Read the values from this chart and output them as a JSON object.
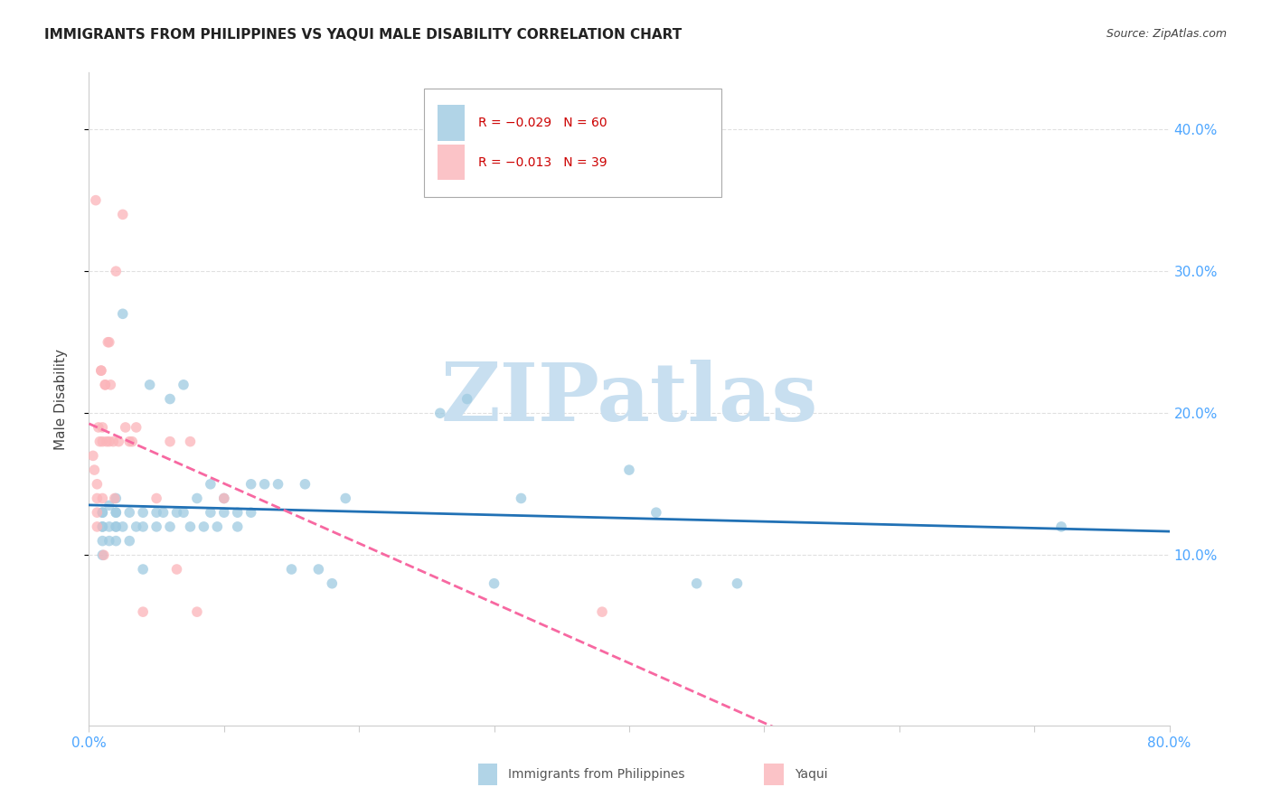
{
  "title": "IMMIGRANTS FROM PHILIPPINES VS YAQUI MALE DISABILITY CORRELATION CHART",
  "source": "Source: ZipAtlas.com",
  "ylabel": "Male Disability",
  "xlim": [
    0.0,
    0.8
  ],
  "ylim": [
    -0.02,
    0.44
  ],
  "ytick_vals": [
    0.1,
    0.2,
    0.3,
    0.4
  ],
  "ytick_labels": [
    "10.0%",
    "20.0%",
    "30.0%",
    "40.0%"
  ],
  "xtick_vals": [
    0.0,
    0.1,
    0.2,
    0.3,
    0.4,
    0.5,
    0.6,
    0.7,
    0.8
  ],
  "xtick_labels": [
    "0.0%",
    "",
    "",
    "",
    "",
    "",
    "",
    "",
    "80.0%"
  ],
  "legend_blue_r": "R = −0.029",
  "legend_blue_n": "N = 60",
  "legend_pink_r": "R = −0.013",
  "legend_pink_n": "N = 39",
  "blue_color": "#9ecae1",
  "pink_color": "#fbb4b9",
  "blue_line_color": "#2171b5",
  "pink_line_color": "#f768a1",
  "tick_color": "#4da6ff",
  "watermark": "ZIPatlas",
  "watermark_color": "#c8dff0",
  "grid_color": "#cccccc",
  "bg_color": "#ffffff",
  "blue_x": [
    0.01,
    0.01,
    0.01,
    0.01,
    0.01,
    0.01,
    0.015,
    0.015,
    0.015,
    0.02,
    0.02,
    0.02,
    0.02,
    0.02,
    0.02,
    0.025,
    0.025,
    0.03,
    0.03,
    0.035,
    0.04,
    0.04,
    0.04,
    0.045,
    0.05,
    0.05,
    0.055,
    0.06,
    0.06,
    0.065,
    0.07,
    0.07,
    0.075,
    0.08,
    0.085,
    0.09,
    0.09,
    0.095,
    0.1,
    0.1,
    0.11,
    0.11,
    0.12,
    0.12,
    0.13,
    0.14,
    0.15,
    0.16,
    0.17,
    0.18,
    0.19,
    0.26,
    0.28,
    0.3,
    0.32,
    0.4,
    0.42,
    0.45,
    0.48,
    0.72
  ],
  "blue_y": [
    0.13,
    0.12,
    0.12,
    0.11,
    0.1,
    0.13,
    0.12,
    0.11,
    0.135,
    0.13,
    0.12,
    0.13,
    0.12,
    0.11,
    0.14,
    0.27,
    0.12,
    0.13,
    0.11,
    0.12,
    0.13,
    0.12,
    0.09,
    0.22,
    0.13,
    0.12,
    0.13,
    0.12,
    0.21,
    0.13,
    0.22,
    0.13,
    0.12,
    0.14,
    0.12,
    0.15,
    0.13,
    0.12,
    0.14,
    0.13,
    0.13,
    0.12,
    0.15,
    0.13,
    0.15,
    0.15,
    0.09,
    0.15,
    0.09,
    0.08,
    0.14,
    0.2,
    0.21,
    0.08,
    0.14,
    0.16,
    0.13,
    0.08,
    0.08,
    0.12
  ],
  "pink_x": [
    0.003,
    0.004,
    0.005,
    0.006,
    0.006,
    0.006,
    0.006,
    0.007,
    0.008,
    0.009,
    0.009,
    0.01,
    0.01,
    0.01,
    0.011,
    0.012,
    0.012,
    0.013,
    0.014,
    0.015,
    0.015,
    0.016,
    0.018,
    0.019,
    0.02,
    0.022,
    0.025,
    0.027,
    0.03,
    0.032,
    0.035,
    0.04,
    0.05,
    0.06,
    0.065,
    0.075,
    0.08,
    0.1,
    0.38
  ],
  "pink_y": [
    0.17,
    0.16,
    0.35,
    0.15,
    0.14,
    0.13,
    0.12,
    0.19,
    0.18,
    0.23,
    0.23,
    0.19,
    0.18,
    0.14,
    0.1,
    0.22,
    0.22,
    0.18,
    0.25,
    0.25,
    0.18,
    0.22,
    0.18,
    0.14,
    0.3,
    0.18,
    0.34,
    0.19,
    0.18,
    0.18,
    0.19,
    0.06,
    0.14,
    0.18,
    0.09,
    0.18,
    0.06,
    0.14,
    0.06
  ]
}
